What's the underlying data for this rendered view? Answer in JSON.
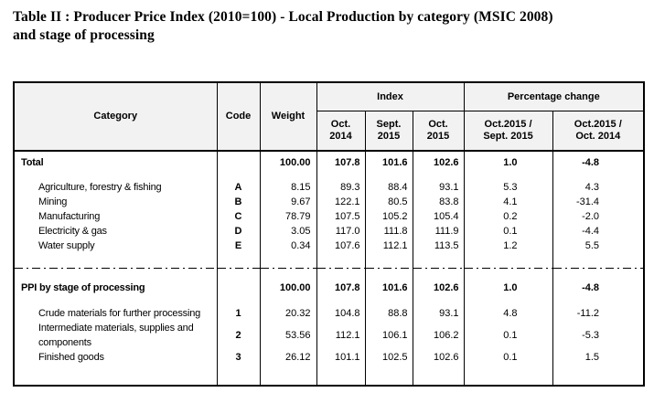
{
  "title": {
    "line1": "Table II : Producer Price Index (2010=100) - Local Production by category (MSIC 2008)",
    "line2": "and stage of processing",
    "full": "Table II : Producer Price Index (2010=100) - Local Production by category (MSIC 2008) and stage of processing"
  },
  "table": {
    "header": {
      "category": "Category",
      "code": "Code",
      "weight": "Weight",
      "index_group": "Index",
      "pct_group": "Percentage change",
      "col_oct2014": "Oct.\n2014",
      "col_sept2015": "Sept.\n2015",
      "col_oct2015": "Oct.\n2015",
      "col_pct_prev": "Oct.2015 /\nSept. 2015",
      "col_pct_year": "Oct.2015 /\nOct. 2014"
    },
    "rows": [
      {
        "type": "total",
        "label": "Total",
        "code": "",
        "weight": "100.00",
        "oct2014": "107.8",
        "sept2015": "101.6",
        "oct2015": "102.6",
        "pct_prev": "1.0",
        "pct_year": "-4.8"
      },
      {
        "type": "item",
        "label": "Agriculture, forestry & fishing",
        "code": "A",
        "weight": "8.15",
        "oct2014": "89.3",
        "sept2015": "88.4",
        "oct2015": "93.1",
        "pct_prev": "5.3",
        "pct_year": "4.3"
      },
      {
        "type": "item",
        "label": "Mining",
        "code": "B",
        "weight": "9.67",
        "oct2014": "122.1",
        "sept2015": "80.5",
        "oct2015": "83.8",
        "pct_prev": "4.1",
        "pct_year": "-31.4"
      },
      {
        "type": "item",
        "label": "Manufacturing",
        "code": "C",
        "weight": "78.79",
        "oct2014": "107.5",
        "sept2015": "105.2",
        "oct2015": "105.4",
        "pct_prev": "0.2",
        "pct_year": "-2.0"
      },
      {
        "type": "item",
        "label": "Electricity & gas",
        "code": "D",
        "weight": "3.05",
        "oct2014": "117.0",
        "sept2015": "111.8",
        "oct2015": "111.9",
        "pct_prev": "0.1",
        "pct_year": "-4.4"
      },
      {
        "type": "item",
        "label": "Water supply",
        "code": "E",
        "weight": "0.34",
        "oct2014": "107.6",
        "sept2015": "112.1",
        "oct2015": "113.5",
        "pct_prev": "1.2",
        "pct_year": "5.5"
      },
      {
        "type": "divider"
      },
      {
        "type": "total",
        "label": "PPI by stage of processing",
        "code": "",
        "weight": "100.00",
        "oct2014": "107.8",
        "sept2015": "101.6",
        "oct2015": "102.6",
        "pct_prev": "1.0",
        "pct_year": "-4.8"
      },
      {
        "type": "item",
        "label": "Crude materials for further processing",
        "code": "1",
        "weight": "20.32",
        "oct2014": "104.8",
        "sept2015": "88.8",
        "oct2015": "93.1",
        "pct_prev": "4.8",
        "pct_year": "-11.2"
      },
      {
        "type": "item",
        "label": "Intermediate materials, supplies and components",
        "code": "2",
        "weight": "53.56",
        "oct2014": "112.1",
        "sept2015": "106.1",
        "oct2015": "106.2",
        "pct_prev": "0.1",
        "pct_year": "-5.3"
      },
      {
        "type": "item",
        "label": "Finished goods",
        "code": "3",
        "weight": "26.12",
        "oct2014": "101.1",
        "sept2015": "102.5",
        "oct2015": "102.6",
        "pct_prev": "0.1",
        "pct_year": "1.5"
      }
    ]
  },
  "colors": {
    "header_bg": "#f2f2f2",
    "border": "#000000",
    "text": "#000000",
    "background": "#ffffff"
  },
  "chart_data": {
    "type": "table",
    "title": "Table II : Producer Price Index (2010=100) - Local Production by category (MSIC 2008) and stage of processing",
    "columns": [
      "Category",
      "Code",
      "Weight",
      "Index Oct. 2014",
      "Index Sept. 2015",
      "Index Oct. 2015",
      "Percentage change Oct.2015 / Sept. 2015",
      "Percentage change Oct.2015 / Oct. 2014"
    ],
    "rows": [
      [
        "Total",
        "",
        100.0,
        107.8,
        101.6,
        102.6,
        1.0,
        -4.8
      ],
      [
        "Agriculture, forestry & fishing",
        "A",
        8.15,
        89.3,
        88.4,
        93.1,
        5.3,
        4.3
      ],
      [
        "Mining",
        "B",
        9.67,
        122.1,
        80.5,
        83.8,
        4.1,
        -31.4
      ],
      [
        "Manufacturing",
        "C",
        78.79,
        107.5,
        105.2,
        105.4,
        0.2,
        -2.0
      ],
      [
        "Electricity & gas",
        "D",
        3.05,
        117.0,
        111.8,
        111.9,
        0.1,
        -4.4
      ],
      [
        "Water supply",
        "E",
        0.34,
        107.6,
        112.1,
        113.5,
        1.2,
        5.5
      ],
      [
        "PPI by stage of processing",
        "",
        100.0,
        107.8,
        101.6,
        102.6,
        1.0,
        -4.8
      ],
      [
        "Crude materials for further processing",
        "1",
        20.32,
        104.8,
        88.8,
        93.1,
        4.8,
        -11.2
      ],
      [
        "Intermediate materials, supplies and components",
        "2",
        53.56,
        112.1,
        106.1,
        106.2,
        0.1,
        -5.3
      ],
      [
        "Finished goods",
        "3",
        26.12,
        101.1,
        102.5,
        102.6,
        0.1,
        1.5
      ]
    ]
  }
}
